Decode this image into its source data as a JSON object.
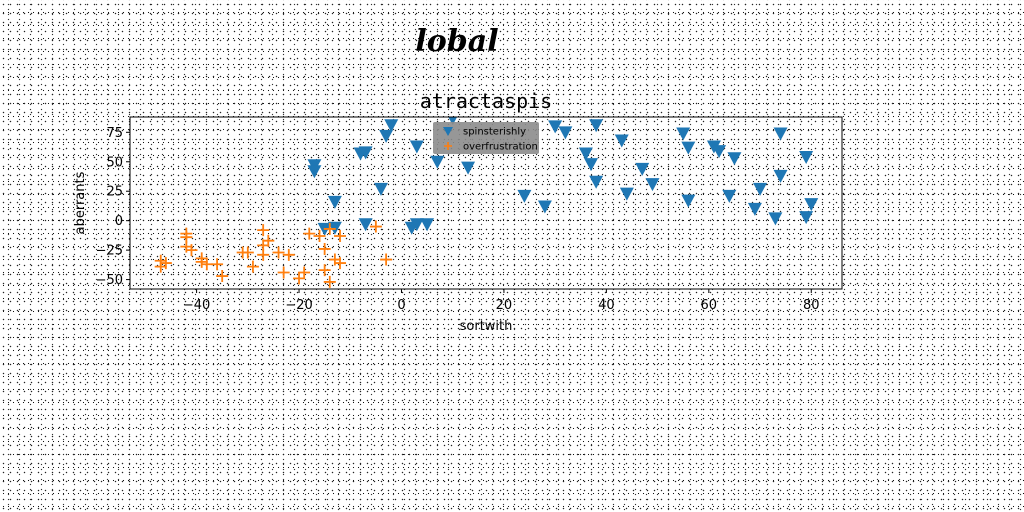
{
  "page": {
    "title": "lobal"
  },
  "chart_data": {
    "type": "scatter",
    "title": "atractaspis",
    "xlabel": "sortwith",
    "ylabel": "aberrants",
    "xlim": [
      -53,
      86
    ],
    "ylim": [
      -58,
      88
    ],
    "xticks": [
      -40,
      -20,
      0,
      20,
      40,
      60,
      80
    ],
    "yticks": [
      -50,
      -25,
      0,
      25,
      50,
      75
    ],
    "grid": false,
    "legend": {
      "position": "upper center",
      "background": "#8c8c8c"
    },
    "series": [
      {
        "name": "spinsterishly",
        "marker": "triangle-down",
        "color": "#1f77b4",
        "points": [
          [
            -17,
            47
          ],
          [
            -17,
            42
          ],
          [
            -13,
            16
          ],
          [
            -15,
            -7
          ],
          [
            -13,
            -6
          ],
          [
            -7,
            -3
          ],
          [
            -8,
            57
          ],
          [
            -7,
            58
          ],
          [
            -4,
            27
          ],
          [
            -3,
            72
          ],
          [
            -2,
            81
          ],
          [
            2,
            -6
          ],
          [
            3,
            -3
          ],
          [
            5,
            -3
          ],
          [
            3,
            63
          ],
          [
            7,
            50
          ],
          [
            10,
            87
          ],
          [
            13,
            45
          ],
          [
            24,
            21
          ],
          [
            28,
            12
          ],
          [
            30,
            80
          ],
          [
            32,
            75
          ],
          [
            36,
            57
          ],
          [
            37,
            48
          ],
          [
            38,
            33
          ],
          [
            38,
            81
          ],
          [
            43,
            68
          ],
          [
            44,
            23
          ],
          [
            47,
            44
          ],
          [
            49,
            31
          ],
          [
            55,
            74
          ],
          [
            56,
            62
          ],
          [
            56,
            17
          ],
          [
            61,
            63
          ],
          [
            62,
            59
          ],
          [
            64,
            21
          ],
          [
            65,
            53
          ],
          [
            69,
            10
          ],
          [
            70,
            27
          ],
          [
            73,
            2
          ],
          [
            74,
            74
          ],
          [
            74,
            38
          ],
          [
            79,
            54
          ],
          [
            79,
            3
          ],
          [
            80,
            14
          ]
        ]
      },
      {
        "name": "overfrustration",
        "marker": "plus",
        "color": "#ff7f0e",
        "points": [
          [
            -47,
            -34
          ],
          [
            -47,
            -39
          ],
          [
            -46,
            -36
          ],
          [
            -42,
            -22
          ],
          [
            -42,
            -14
          ],
          [
            -42,
            -11
          ],
          [
            -41,
            -25
          ],
          [
            -39,
            -32
          ],
          [
            -39,
            -35
          ],
          [
            -38,
            -37
          ],
          [
            -36,
            -37
          ],
          [
            -35,
            -47
          ],
          [
            -31,
            -27
          ],
          [
            -30,
            -27
          ],
          [
            -29,
            -39
          ],
          [
            -27,
            -29
          ],
          [
            -27,
            -21
          ],
          [
            -26,
            -17
          ],
          [
            -27,
            -8
          ],
          [
            -24,
            -27
          ],
          [
            -23,
            -44
          ],
          [
            -22,
            -29
          ],
          [
            -20,
            -49
          ],
          [
            -19,
            -44
          ],
          [
            -18,
            -11
          ],
          [
            -16,
            -13
          ],
          [
            -15,
            -42
          ],
          [
            -15,
            -24
          ],
          [
            -14,
            -7
          ],
          [
            -14,
            -52
          ],
          [
            -13,
            -33
          ],
          [
            -12,
            -36
          ],
          [
            -12,
            -13
          ],
          [
            -5,
            -5
          ],
          [
            -3,
            -33
          ]
        ]
      }
    ]
  }
}
